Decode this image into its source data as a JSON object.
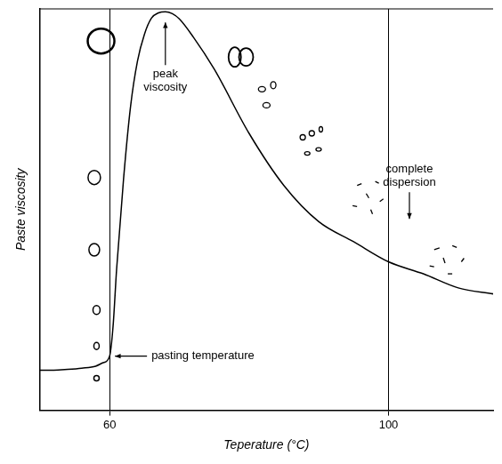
{
  "chart_data": {
    "type": "line",
    "x_label": "Teperature (°C)",
    "y_label": "Paste viscosity",
    "x": [
      50,
      52,
      54,
      56,
      58,
      59,
      60,
      60.5,
      61,
      62,
      63,
      64,
      65,
      66,
      67,
      68,
      69,
      70,
      72,
      75,
      80,
      85,
      90,
      95,
      100,
      105,
      110,
      115
    ],
    "values": [
      10,
      10,
      10.2,
      10.5,
      11,
      11.8,
      13.5,
      21,
      35,
      57.6,
      75.6,
      87,
      93.7,
      97.7,
      99,
      99.3,
      98.8,
      97.5,
      93,
      85,
      69,
      56,
      47,
      42,
      37,
      34,
      30.5,
      29
    ],
    "color": "#000000",
    "marker": "none",
    "line_style": "solid",
    "xlim": [
      50,
      115
    ],
    "xticks": [
      60,
      100
    ],
    "ylim": [
      0,
      100
    ],
    "yticks": [],
    "grid": "x",
    "tick_labels": "x",
    "annotations": [
      {
        "text": "peak viscosity",
        "x": 68,
        "y": 99.3
      },
      {
        "text": "pasting temperature",
        "x": 60,
        "y": 13.5
      },
      {
        "text": "complete dispersion",
        "x": 103,
        "y": 35.5
      }
    ]
  }
}
